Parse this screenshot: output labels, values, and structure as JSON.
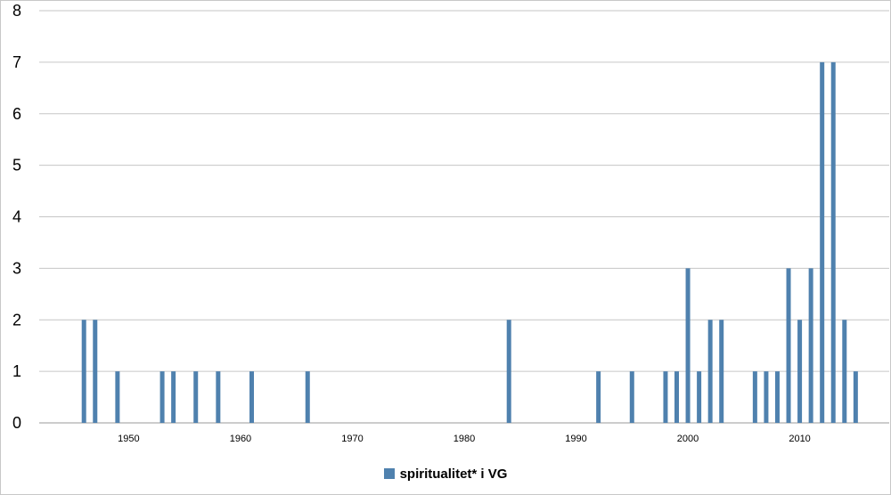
{
  "chart_data": {
    "type": "bar",
    "title": "",
    "xlabel": "",
    "ylabel": "",
    "xlim": [
      1942,
      2018
    ],
    "ylim": [
      0,
      8
    ],
    "xticks": [
      1950,
      1960,
      1970,
      1980,
      1990,
      2000,
      2010
    ],
    "yticks": [
      0,
      1,
      2,
      3,
      4,
      5,
      6,
      7,
      8
    ],
    "grid": true,
    "legend_position": "bottom",
    "series": [
      {
        "name": "spiritualitet* i VG",
        "color": "#4f81ae",
        "x": [
          1946,
          1947,
          1949,
          1953,
          1954,
          1956,
          1958,
          1961,
          1966,
          1984,
          1992,
          1995,
          1998,
          1999,
          2000,
          2001,
          2002,
          2003,
          2006,
          2007,
          2008,
          2009,
          2010,
          2011,
          2012,
          2013,
          2014,
          2015
        ],
        "values": [
          2,
          2,
          1,
          1,
          1,
          1,
          1,
          1,
          1,
          2,
          1,
          1,
          1,
          1,
          3,
          1,
          2,
          2,
          1,
          1,
          1,
          3,
          2,
          3,
          7,
          7,
          2,
          1
        ]
      }
    ]
  }
}
